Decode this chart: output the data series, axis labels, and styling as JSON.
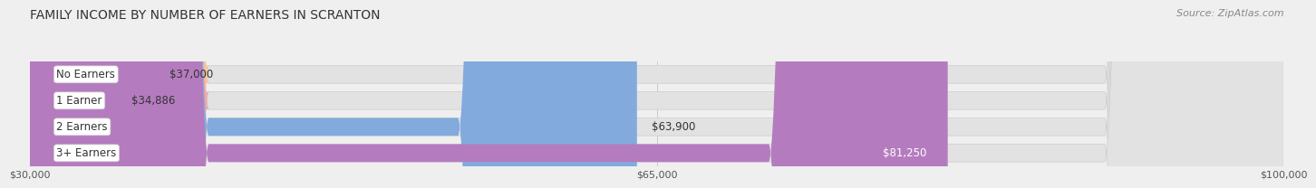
{
  "title": "FAMILY INCOME BY NUMBER OF EARNERS IN SCRANTON",
  "source": "Source: ZipAtlas.com",
  "categories": [
    "No Earners",
    "1 Earner",
    "2 Earners",
    "3+ Earners"
  ],
  "values": [
    37000,
    34886,
    63900,
    81250
  ],
  "bar_colors": [
    "#f5c896",
    "#f4a8a8",
    "#82aadd",
    "#b57bbf"
  ],
  "value_colors": [
    "#333333",
    "#333333",
    "#333333",
    "#ffffff"
  ],
  "xmin": 30000,
  "xmax": 100000,
  "xticks": [
    30000,
    65000,
    100000
  ],
  "xtick_labels": [
    "$30,000",
    "$65,000",
    "$100,000"
  ],
  "bg_color": "#efefef",
  "bar_bg_color": "#e2e2e2",
  "title_fontsize": 10,
  "label_fontsize": 8.5,
  "value_fontsize": 8.5,
  "source_fontsize": 8
}
